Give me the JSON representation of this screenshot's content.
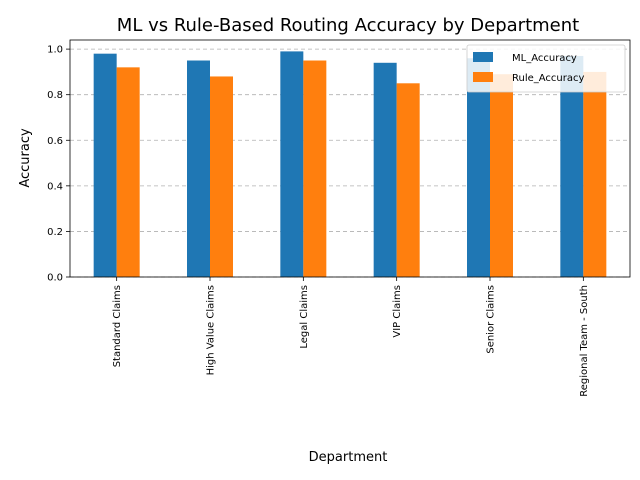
{
  "chart_data": {
    "type": "bar",
    "title": "ML vs Rule-Based Routing Accuracy by Department",
    "xlabel": "Department",
    "ylabel": "Accuracy",
    "categories": [
      "Standard Claims",
      "High Value Claims",
      "Legal Claims",
      "VIP Claims",
      "Senior Claims",
      "Regional Team - South"
    ],
    "series": [
      {
        "name": "ML_Accuracy",
        "color": "#1f77b4",
        "values": [
          0.98,
          0.95,
          0.99,
          0.94,
          0.96,
          0.97
        ]
      },
      {
        "name": "Rule_Accuracy",
        "color": "#ff7f0e",
        "values": [
          0.92,
          0.88,
          0.95,
          0.85,
          0.89,
          0.9
        ]
      }
    ],
    "ylim": [
      0,
      1.04
    ],
    "yticks": [
      "0.0",
      "0.2",
      "0.4",
      "0.6",
      "0.8",
      "1.0"
    ],
    "grid": true,
    "grid_axis": "y",
    "legend_position": "top-right"
  }
}
